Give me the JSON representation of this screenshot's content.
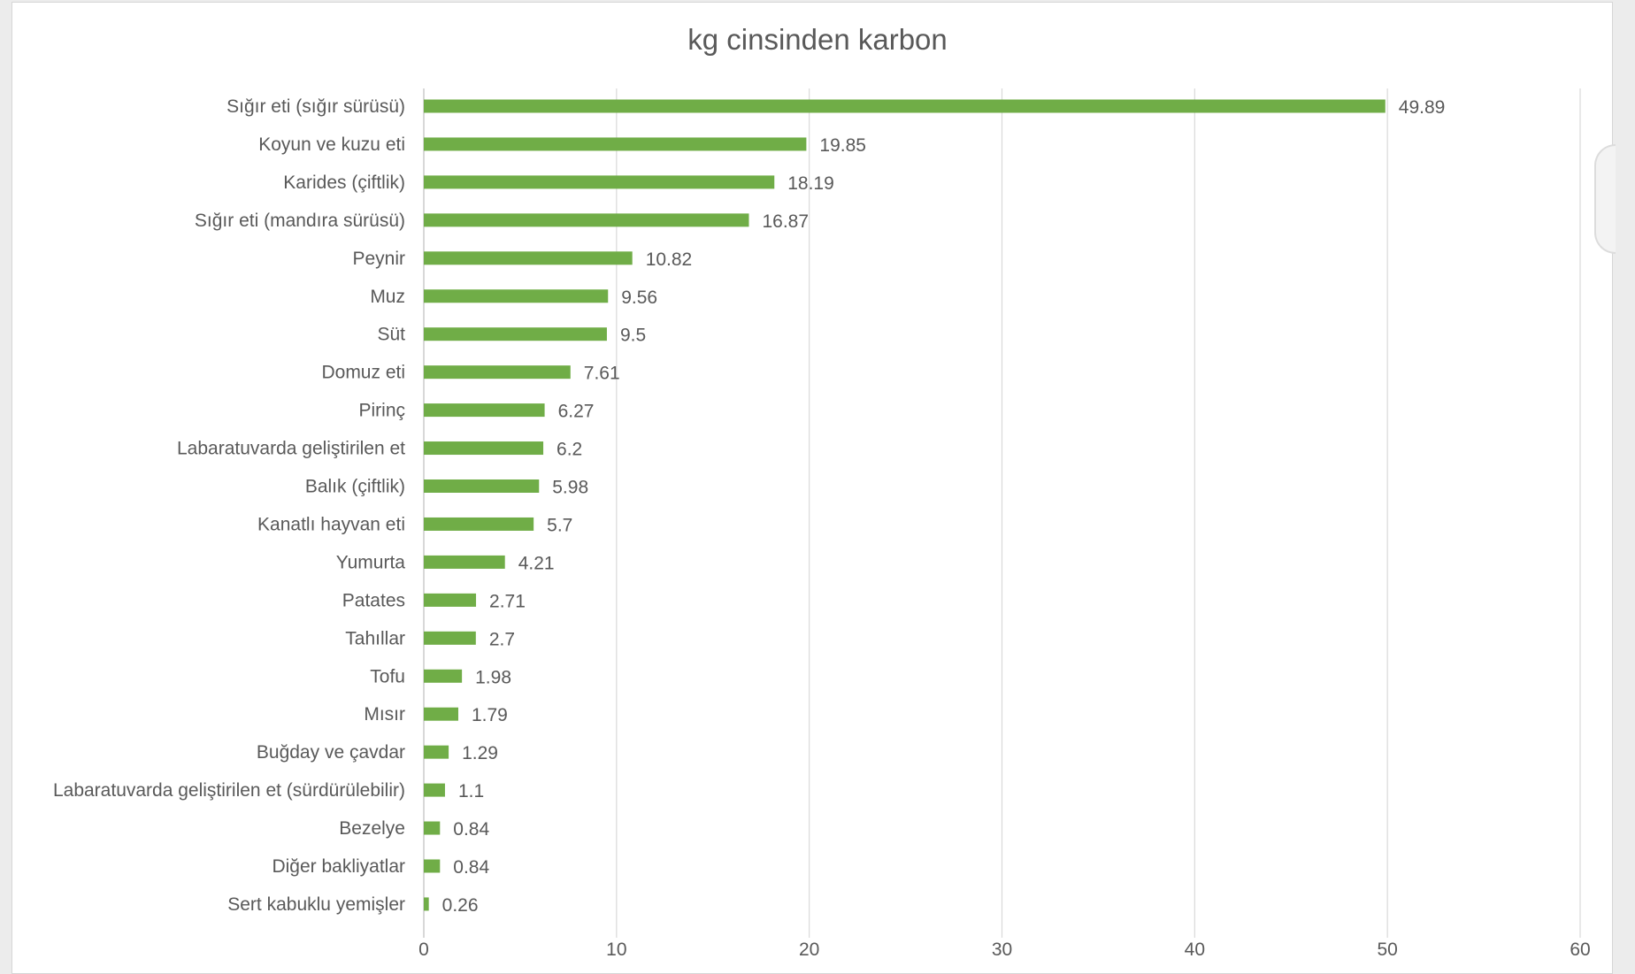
{
  "chart_data": {
    "type": "bar",
    "orientation": "horizontal",
    "title": "kg cinsinden karbon",
    "xlabel": "",
    "ylabel": "",
    "xlim": [
      0,
      60
    ],
    "x_ticks": [
      0,
      10,
      20,
      30,
      40,
      50,
      60
    ],
    "grid": true,
    "legend": "none",
    "bar_color": "#70ad47",
    "categories": [
      "Sığır eti (sığır sürüsü)",
      "Koyun ve kuzu eti",
      "Karides (çiftlik)",
      "Sığır eti (mandıra sürüsü)",
      "Peynir",
      "Muz",
      "Süt",
      "Domuz eti",
      "Pirinç",
      "Labaratuvarda geliştirilen et",
      "Balık (çiftlik)",
      "Kanatlı hayvan eti",
      "Yumurta",
      "Patates",
      "Tahıllar",
      "Tofu",
      "Mısır",
      "Buğday ve çavdar",
      "Labaratuvarda geliştirilen et (sürdürülebilir)",
      "Bezelye",
      "Diğer bakliyatlar",
      "Sert kabuklu yemişler"
    ],
    "values": [
      49.89,
      19.85,
      18.19,
      16.87,
      10.82,
      9.56,
      9.5,
      7.61,
      6.27,
      6.2,
      5.98,
      5.7,
      4.21,
      2.71,
      2.7,
      1.98,
      1.79,
      1.29,
      1.1,
      0.84,
      0.84,
      0.26
    ]
  }
}
